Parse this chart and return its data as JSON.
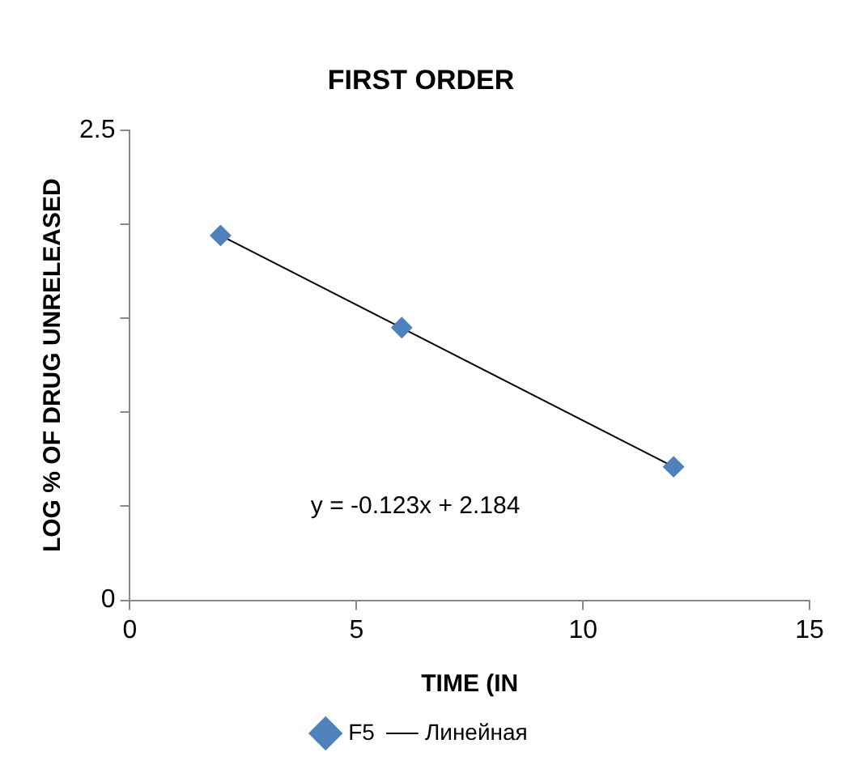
{
  "chart_data": {
    "type": "scatter",
    "title": "FIRST ORDER",
    "xlabel": "TIME (IN",
    "ylabel": "LOG % OF DRUG UNRELEASED",
    "x": [
      2,
      6,
      12
    ],
    "series": [
      {
        "name": "F5",
        "color": "#4f81bd",
        "marker": "diamond",
        "values": [
          1.94,
          1.45,
          0.71
        ]
      },
      {
        "name": "Линейная",
        "type": "line",
        "color": "#000000",
        "marker": "none",
        "x": [
          2,
          12
        ],
        "values": [
          1.94,
          0.71
        ]
      }
    ],
    "xlim": [
      0,
      15
    ],
    "xticks": [
      0,
      5,
      10,
      15
    ],
    "ylim": [
      0,
      2.5
    ],
    "yticks": [
      0,
      {
        "value": 0.5,
        "label": null
      },
      {
        "value": 1,
        "label": null
      },
      {
        "value": 1.5,
        "label": null
      },
      {
        "value": 2,
        "label": null
      },
      {
        "value": 2.5,
        "label": "2.5"
      }
    ],
    "grid": false,
    "legend": "bottom",
    "annotations": [
      "y = -0.123x + 2.184"
    ]
  }
}
